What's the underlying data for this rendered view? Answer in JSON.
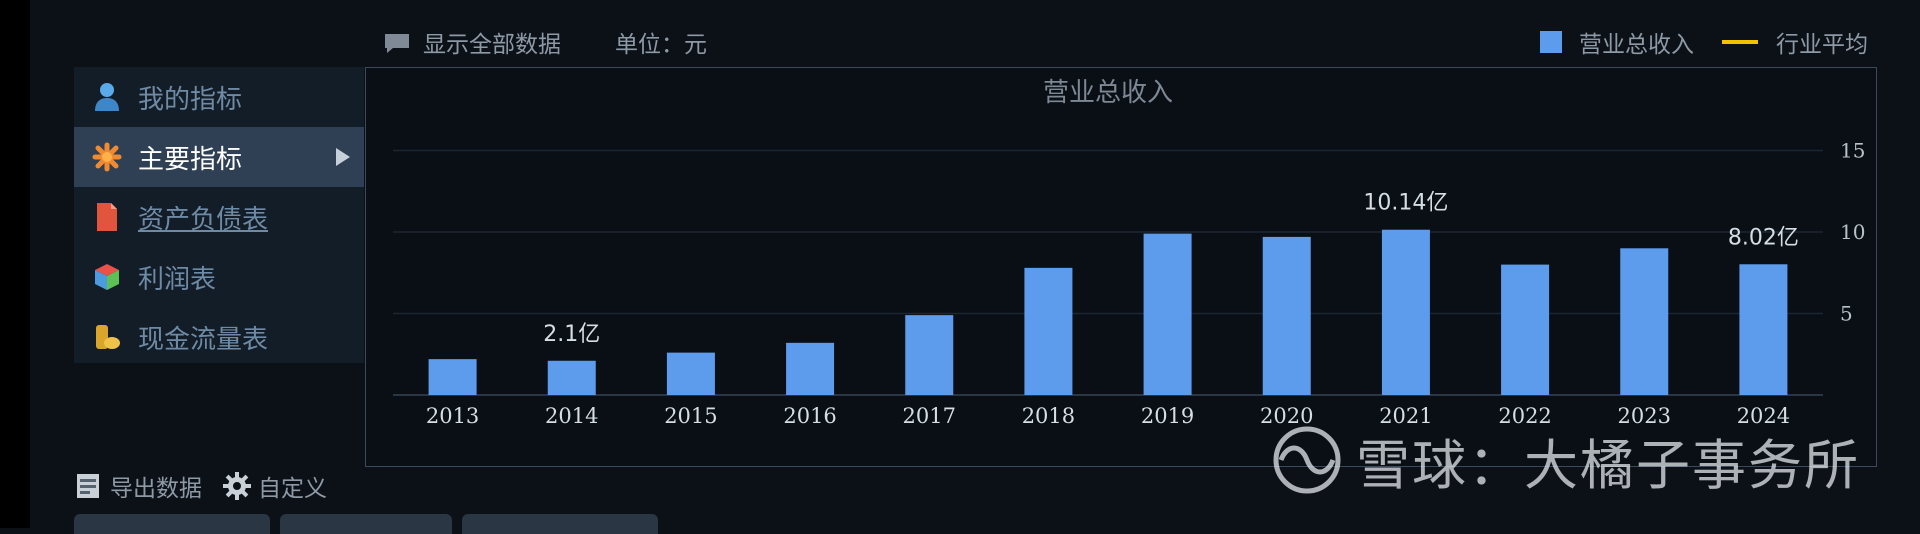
{
  "toolbar": {
    "show_all": "显示全部数据",
    "unit": "单位：元"
  },
  "legend": {
    "series1": "营业总收入",
    "series2": "行业平均"
  },
  "sidebar": {
    "items": [
      {
        "label": "我的指标",
        "icon": "user-icon"
      },
      {
        "label": "主要指标",
        "icon": "asterisk-icon"
      },
      {
        "label": "资产负债表",
        "icon": "document-icon"
      },
      {
        "label": "利润表",
        "icon": "cube-icon"
      },
      {
        "label": "现金流量表",
        "icon": "coins-icon"
      }
    ]
  },
  "bottom": {
    "export": "导出数据",
    "custom": "自定义"
  },
  "watermark": "雪球：大橘子事务所",
  "colors": {
    "bar": "#5d9ced",
    "line": "#f2c200",
    "active": "#2f4055"
  },
  "chart_data": {
    "type": "bar",
    "title": "营业总收入",
    "categories": [
      "2013",
      "2014",
      "2015",
      "2016",
      "2017",
      "2018",
      "2019",
      "2020",
      "2021",
      "2022",
      "2023",
      "2024"
    ],
    "values": [
      2.2,
      2.1,
      2.6,
      3.2,
      4.9,
      7.8,
      9.9,
      9.7,
      10.14,
      8.0,
      9.0,
      8.02
    ],
    "data_labels": [
      {
        "index": 1,
        "text": "2.1亿"
      },
      {
        "index": 8,
        "text": "10.14亿"
      },
      {
        "index": 11,
        "text": "8.02亿"
      }
    ],
    "yticks": [
      5,
      10,
      15
    ],
    "ylim": [
      0,
      16
    ],
    "ylabel": "",
    "grid": true,
    "legend_position": "top-right"
  }
}
